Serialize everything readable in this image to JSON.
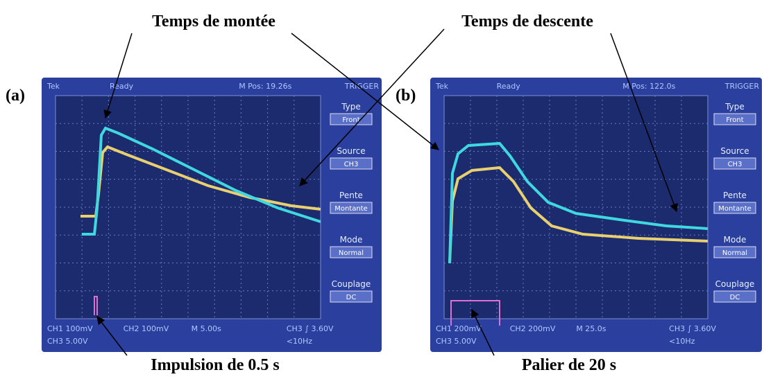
{
  "annotations": {
    "rise": "Temps de montée",
    "fall": "Temps de descente",
    "pulse": "Impulsion de 0.5 s",
    "plateau": "Palier de 20 s"
  },
  "panels": [
    {
      "label": "(a)",
      "top_bar": [
        "Tek",
        "Ready",
        "M Pos: 19.26s",
        "TRIGGER"
      ],
      "menu": [
        {
          "label": "Type",
          "value": "Front"
        },
        {
          "label": "Source",
          "value": "CH3"
        },
        {
          "label": "Pente",
          "value": "Montante"
        },
        {
          "label": "Mode",
          "value": "Normal"
        },
        {
          "label": "Couplage",
          "value": "DC"
        }
      ],
      "bottom": [
        "CH1 100mV",
        "CH2 100mV",
        "M 5.00s",
        "CH3 ∫ 3.60V",
        "CH3 5.00V",
        "<10Hz"
      ]
    },
    {
      "label": "(b)",
      "top_bar": [
        "Tek",
        "Ready",
        "M Pos: 122.0s",
        "TRIGGER"
      ],
      "menu": [
        {
          "label": "Type",
          "value": "Front"
        },
        {
          "label": "Source",
          "value": "CH3"
        },
        {
          "label": "Pente",
          "value": "Montante"
        },
        {
          "label": "Mode",
          "value": "Normal"
        },
        {
          "label": "Couplage",
          "value": "DC"
        }
      ],
      "bottom": [
        "CH1 200mV",
        "CH2 200mV",
        "M 25.0s",
        "CH3 ∫ 3.60V",
        "CH3 5.00V",
        "<10Hz"
      ]
    }
  ]
}
